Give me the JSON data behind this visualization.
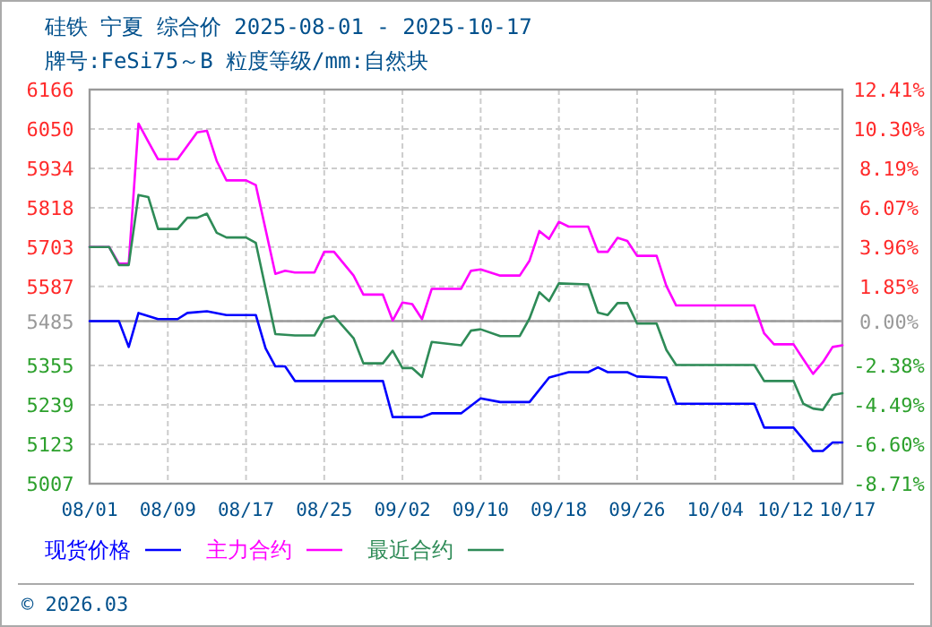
{
  "chart_data": {
    "type": "line",
    "title": "硅铁 宁夏 综合价 2025-08-01 - 2025-10-17",
    "subtitle": "牌号:FeSi75～B 粒度等级/mm:自然块",
    "annotations": [
      "© 2026.03"
    ],
    "xlim": [
      "2025-08-01",
      "2025-10-17"
    ],
    "xticks": [
      {
        "value": "2025-08-01",
        "label": "08/01"
      },
      {
        "value": "2025-08-09",
        "label": "08/09"
      },
      {
        "value": "2025-08-17",
        "label": "08/17"
      },
      {
        "value": "2025-08-25",
        "label": "08/25"
      },
      {
        "value": "2025-09-02",
        "label": "09/02"
      },
      {
        "value": "2025-09-10",
        "label": "09/10"
      },
      {
        "value": "2025-09-18",
        "label": "09/18"
      },
      {
        "value": "2025-09-26",
        "label": "09/26"
      },
      {
        "value": "2025-10-04",
        "label": "10/04"
      },
      {
        "value": "2025-10-12",
        "label": "10/12"
      },
      {
        "value": "2025-10-17",
        "label": "10/17"
      }
    ],
    "ylim": [
      5007,
      6166
    ],
    "yticks": [
      5007,
      5123,
      5239,
      5355,
      5485,
      5587,
      5703,
      5818,
      5934,
      6050,
      6166
    ],
    "y2lim": [
      -8.71,
      12.41
    ],
    "y2ticks": [
      {
        "value": -8.71,
        "label": "-8.71%"
      },
      {
        "value": -6.6,
        "label": "-6.60%"
      },
      {
        "value": -4.49,
        "label": "-4.49%"
      },
      {
        "value": -2.38,
        "label": "-2.38%"
      },
      {
        "value": 0,
        "label": "0.00%"
      },
      {
        "value": 1.85,
        "label": "1.85%"
      },
      {
        "value": 3.96,
        "label": "3.96%"
      },
      {
        "value": 6.07,
        "label": "6.07%"
      },
      {
        "value": 8.19,
        "label": "8.19%"
      },
      {
        "value": 10.3,
        "label": "10.30%"
      },
      {
        "value": 12.41,
        "label": "12.41%"
      }
    ],
    "ref_lines": [
      {
        "axis": "y",
        "value": 5485,
        "color": "#999999"
      }
    ],
    "grid": true,
    "legend": "bottom",
    "marker": "none",
    "line_style": "solid",
    "series": [
      {
        "name": "现货价格",
        "color": "#0000ff",
        "x": [
          "2025-08-01",
          "2025-08-04",
          "2025-08-05",
          "2025-08-06",
          "2025-08-08",
          "2025-08-10",
          "2025-08-11",
          "2025-08-13",
          "2025-08-15",
          "2025-08-18",
          "2025-08-19",
          "2025-08-20",
          "2025-08-21",
          "2025-08-22",
          "2025-08-31",
          "2025-09-01",
          "2025-09-04",
          "2025-09-05",
          "2025-09-08",
          "2025-09-10",
          "2025-09-12",
          "2025-09-15",
          "2025-09-17",
          "2025-09-19",
          "2025-09-21",
          "2025-09-22",
          "2025-09-23",
          "2025-09-25",
          "2025-09-26",
          "2025-09-29",
          "2025-09-30",
          "2025-10-08",
          "2025-10-09",
          "2025-10-12",
          "2025-10-14",
          "2025-10-15",
          "2025-10-16",
          "2025-10-17"
        ],
        "values": [
          5485,
          5485,
          5409,
          5509,
          5491,
          5491,
          5509,
          5514,
          5503,
          5503,
          5405,
          5352,
          5352,
          5309,
          5309,
          5203,
          5203,
          5214,
          5214,
          5258,
          5247,
          5247,
          5319,
          5335,
          5335,
          5349,
          5335,
          5335,
          5322,
          5319,
          5242,
          5242,
          5172,
          5172,
          5103,
          5103,
          5128,
          5128
        ]
      },
      {
        "name": "主力合约",
        "color": "#ff00ff",
        "x": [
          "2025-08-01",
          "2025-08-03",
          "2025-08-04",
          "2025-08-05",
          "2025-08-06",
          "2025-08-07",
          "2025-08-08",
          "2025-08-10",
          "2025-08-12",
          "2025-08-13",
          "2025-08-14",
          "2025-08-15",
          "2025-08-17",
          "2025-08-18",
          "2025-08-20",
          "2025-08-21",
          "2025-08-22",
          "2025-08-24",
          "2025-08-25",
          "2025-08-26",
          "2025-08-28",
          "2025-08-29",
          "2025-08-31",
          "2025-09-01",
          "2025-09-02",
          "2025-09-03",
          "2025-09-04",
          "2025-09-05",
          "2025-09-08",
          "2025-09-09",
          "2025-09-10",
          "2025-09-12",
          "2025-09-14",
          "2025-09-15",
          "2025-09-16",
          "2025-09-17",
          "2025-09-18",
          "2025-09-19",
          "2025-09-21",
          "2025-09-22",
          "2025-09-23",
          "2025-09-24",
          "2025-09-25",
          "2025-09-26",
          "2025-09-28",
          "2025-09-29",
          "2025-09-30",
          "2025-10-08",
          "2025-10-09",
          "2025-10-10",
          "2025-10-12",
          "2025-10-13",
          "2025-10-14",
          "2025-10-15",
          "2025-10-16",
          "2025-10-17"
        ],
        "values": [
          5703,
          5703,
          5654,
          5654,
          6066,
          6013,
          5961,
          5961,
          6040,
          6045,
          5956,
          5899,
          5899,
          5885,
          5624,
          5633,
          5628,
          5628,
          5689,
          5689,
          5619,
          5563,
          5563,
          5487,
          5540,
          5535,
          5491,
          5580,
          5580,
          5633,
          5637,
          5619,
          5619,
          5663,
          5750,
          5727,
          5777,
          5763,
          5763,
          5689,
          5689,
          5730,
          5721,
          5677,
          5677,
          5588,
          5531,
          5531,
          5449,
          5417,
          5417,
          5373,
          5330,
          5364,
          5409,
          5414
        ]
      },
      {
        "name": "最近合约",
        "color": "#2e8b57",
        "x": [
          "2025-08-01",
          "2025-08-03",
          "2025-08-04",
          "2025-08-05",
          "2025-08-06",
          "2025-08-07",
          "2025-08-08",
          "2025-08-10",
          "2025-08-11",
          "2025-08-12",
          "2025-08-13",
          "2025-08-14",
          "2025-08-15",
          "2025-08-17",
          "2025-08-18",
          "2025-08-20",
          "2025-08-22",
          "2025-08-24",
          "2025-08-25",
          "2025-08-26",
          "2025-08-28",
          "2025-08-29",
          "2025-08-31",
          "2025-09-01",
          "2025-09-02",
          "2025-09-03",
          "2025-09-04",
          "2025-09-05",
          "2025-09-08",
          "2025-09-09",
          "2025-09-10",
          "2025-09-12",
          "2025-09-14",
          "2025-09-15",
          "2025-09-16",
          "2025-09-17",
          "2025-09-18",
          "2025-09-21",
          "2025-09-22",
          "2025-09-23",
          "2025-09-24",
          "2025-09-25",
          "2025-09-26",
          "2025-09-28",
          "2025-09-29",
          "2025-09-30",
          "2025-10-08",
          "2025-10-09",
          "2025-10-12",
          "2025-10-13",
          "2025-10-14",
          "2025-10-15",
          "2025-10-16",
          "2025-10-17"
        ],
        "values": [
          5703,
          5703,
          5650,
          5650,
          5856,
          5850,
          5756,
          5756,
          5789,
          5789,
          5801,
          5745,
          5731,
          5731,
          5715,
          5447,
          5443,
          5443,
          5493,
          5500,
          5435,
          5361,
          5361,
          5398,
          5347,
          5347,
          5321,
          5424,
          5414,
          5457,
          5461,
          5441,
          5441,
          5493,
          5570,
          5544,
          5596,
          5593,
          5510,
          5503,
          5538,
          5538,
          5478,
          5478,
          5400,
          5356,
          5356,
          5309,
          5309,
          5242,
          5228,
          5224,
          5268,
          5273
        ]
      }
    ]
  }
}
